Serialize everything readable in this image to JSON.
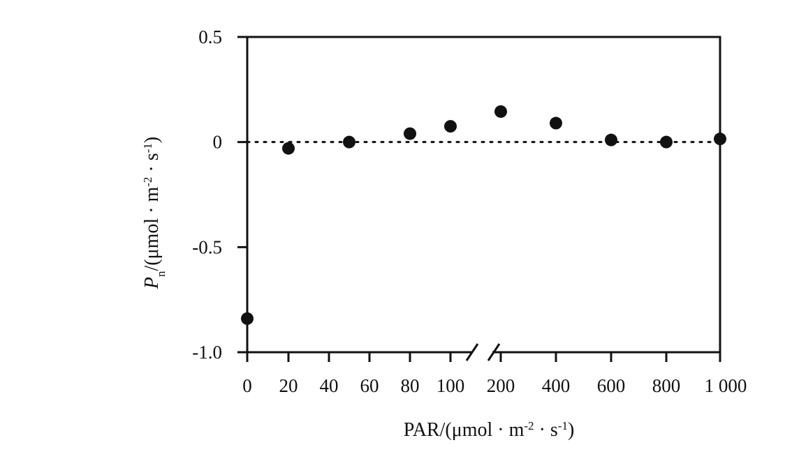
{
  "chart_data": {
    "type": "scatter",
    "xlabel_parts": [
      {
        "text": "PAR/(μmol · m",
        "style": "normal"
      },
      {
        "text": "-2",
        "style": "sup"
      },
      {
        "text": " · s",
        "style": "normal"
      },
      {
        "text": "-1",
        "style": "sup"
      },
      {
        "text": ")",
        "style": "normal"
      }
    ],
    "ylabel_parts": [
      {
        "text": "P",
        "style": "italic"
      },
      {
        "text": "n",
        "style": "sub"
      },
      {
        "text": "/(μmol · m",
        "style": "normal"
      },
      {
        "text": "-2",
        "style": "sup"
      },
      {
        "text": " · s",
        "style": "normal"
      },
      {
        "text": "-1",
        "style": "sup"
      },
      {
        "text": ")",
        "style": "normal"
      }
    ],
    "x_tick_labels": [
      "0",
      "20",
      "40",
      "60",
      "80",
      "100",
      "200",
      "400",
      "600",
      "800",
      "1 000"
    ],
    "y_tick_labels": [
      "0.5",
      "0",
      "-0.5",
      "-1.0"
    ],
    "y_ticks": [
      0.5,
      0,
      -0.5,
      -1.0
    ],
    "ylim": [
      -1.0,
      0.5
    ],
    "x_axis_break_between": [
      100,
      200
    ],
    "reference_line": {
      "y": 0,
      "style": "dotted"
    },
    "points": [
      {
        "x": 0,
        "y": -0.84
      },
      {
        "x": 20,
        "y": -0.03
      },
      {
        "x": 50,
        "y": 0.0
      },
      {
        "x": 80,
        "y": 0.04
      },
      {
        "x": 100,
        "y": 0.075
      },
      {
        "x": 200,
        "y": 0.145
      },
      {
        "x": 400,
        "y": 0.09
      },
      {
        "x": 600,
        "y": 0.01
      },
      {
        "x": 800,
        "y": 0.0
      },
      {
        "x": 1000,
        "y": 0.015
      }
    ],
    "grid": false,
    "marker_color": "#111111"
  }
}
